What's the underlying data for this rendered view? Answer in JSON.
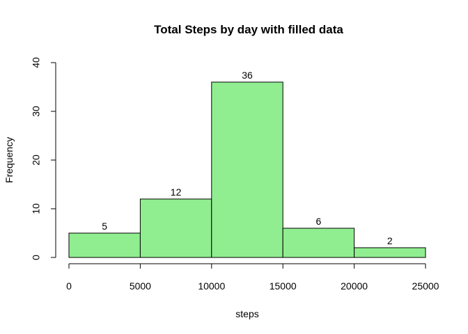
{
  "chart_data": {
    "type": "bar",
    "title": "Total Steps by day with filled data",
    "xlabel": "steps",
    "ylabel": "Frequency",
    "bin_edges": [
      0,
      5000,
      10000,
      15000,
      20000,
      25000
    ],
    "values": [
      5,
      12,
      36,
      6,
      2
    ],
    "data_labels": [
      "5",
      "12",
      "36",
      "6",
      "2"
    ],
    "xlim": [
      0,
      25000
    ],
    "ylim": [
      0,
      40
    ],
    "x_ticks": [
      0,
      5000,
      10000,
      15000,
      20000,
      25000
    ],
    "x_tick_labels": [
      "0",
      "5000",
      "10000",
      "15000",
      "20000",
      "25000"
    ],
    "y_ticks": [
      0,
      10,
      20,
      30,
      40
    ],
    "y_tick_labels": [
      "0",
      "10",
      "20",
      "30",
      "40"
    ],
    "bar_color": "#90EE90",
    "bar_edge_color": "#000000",
    "grid": false,
    "legend": "none"
  }
}
